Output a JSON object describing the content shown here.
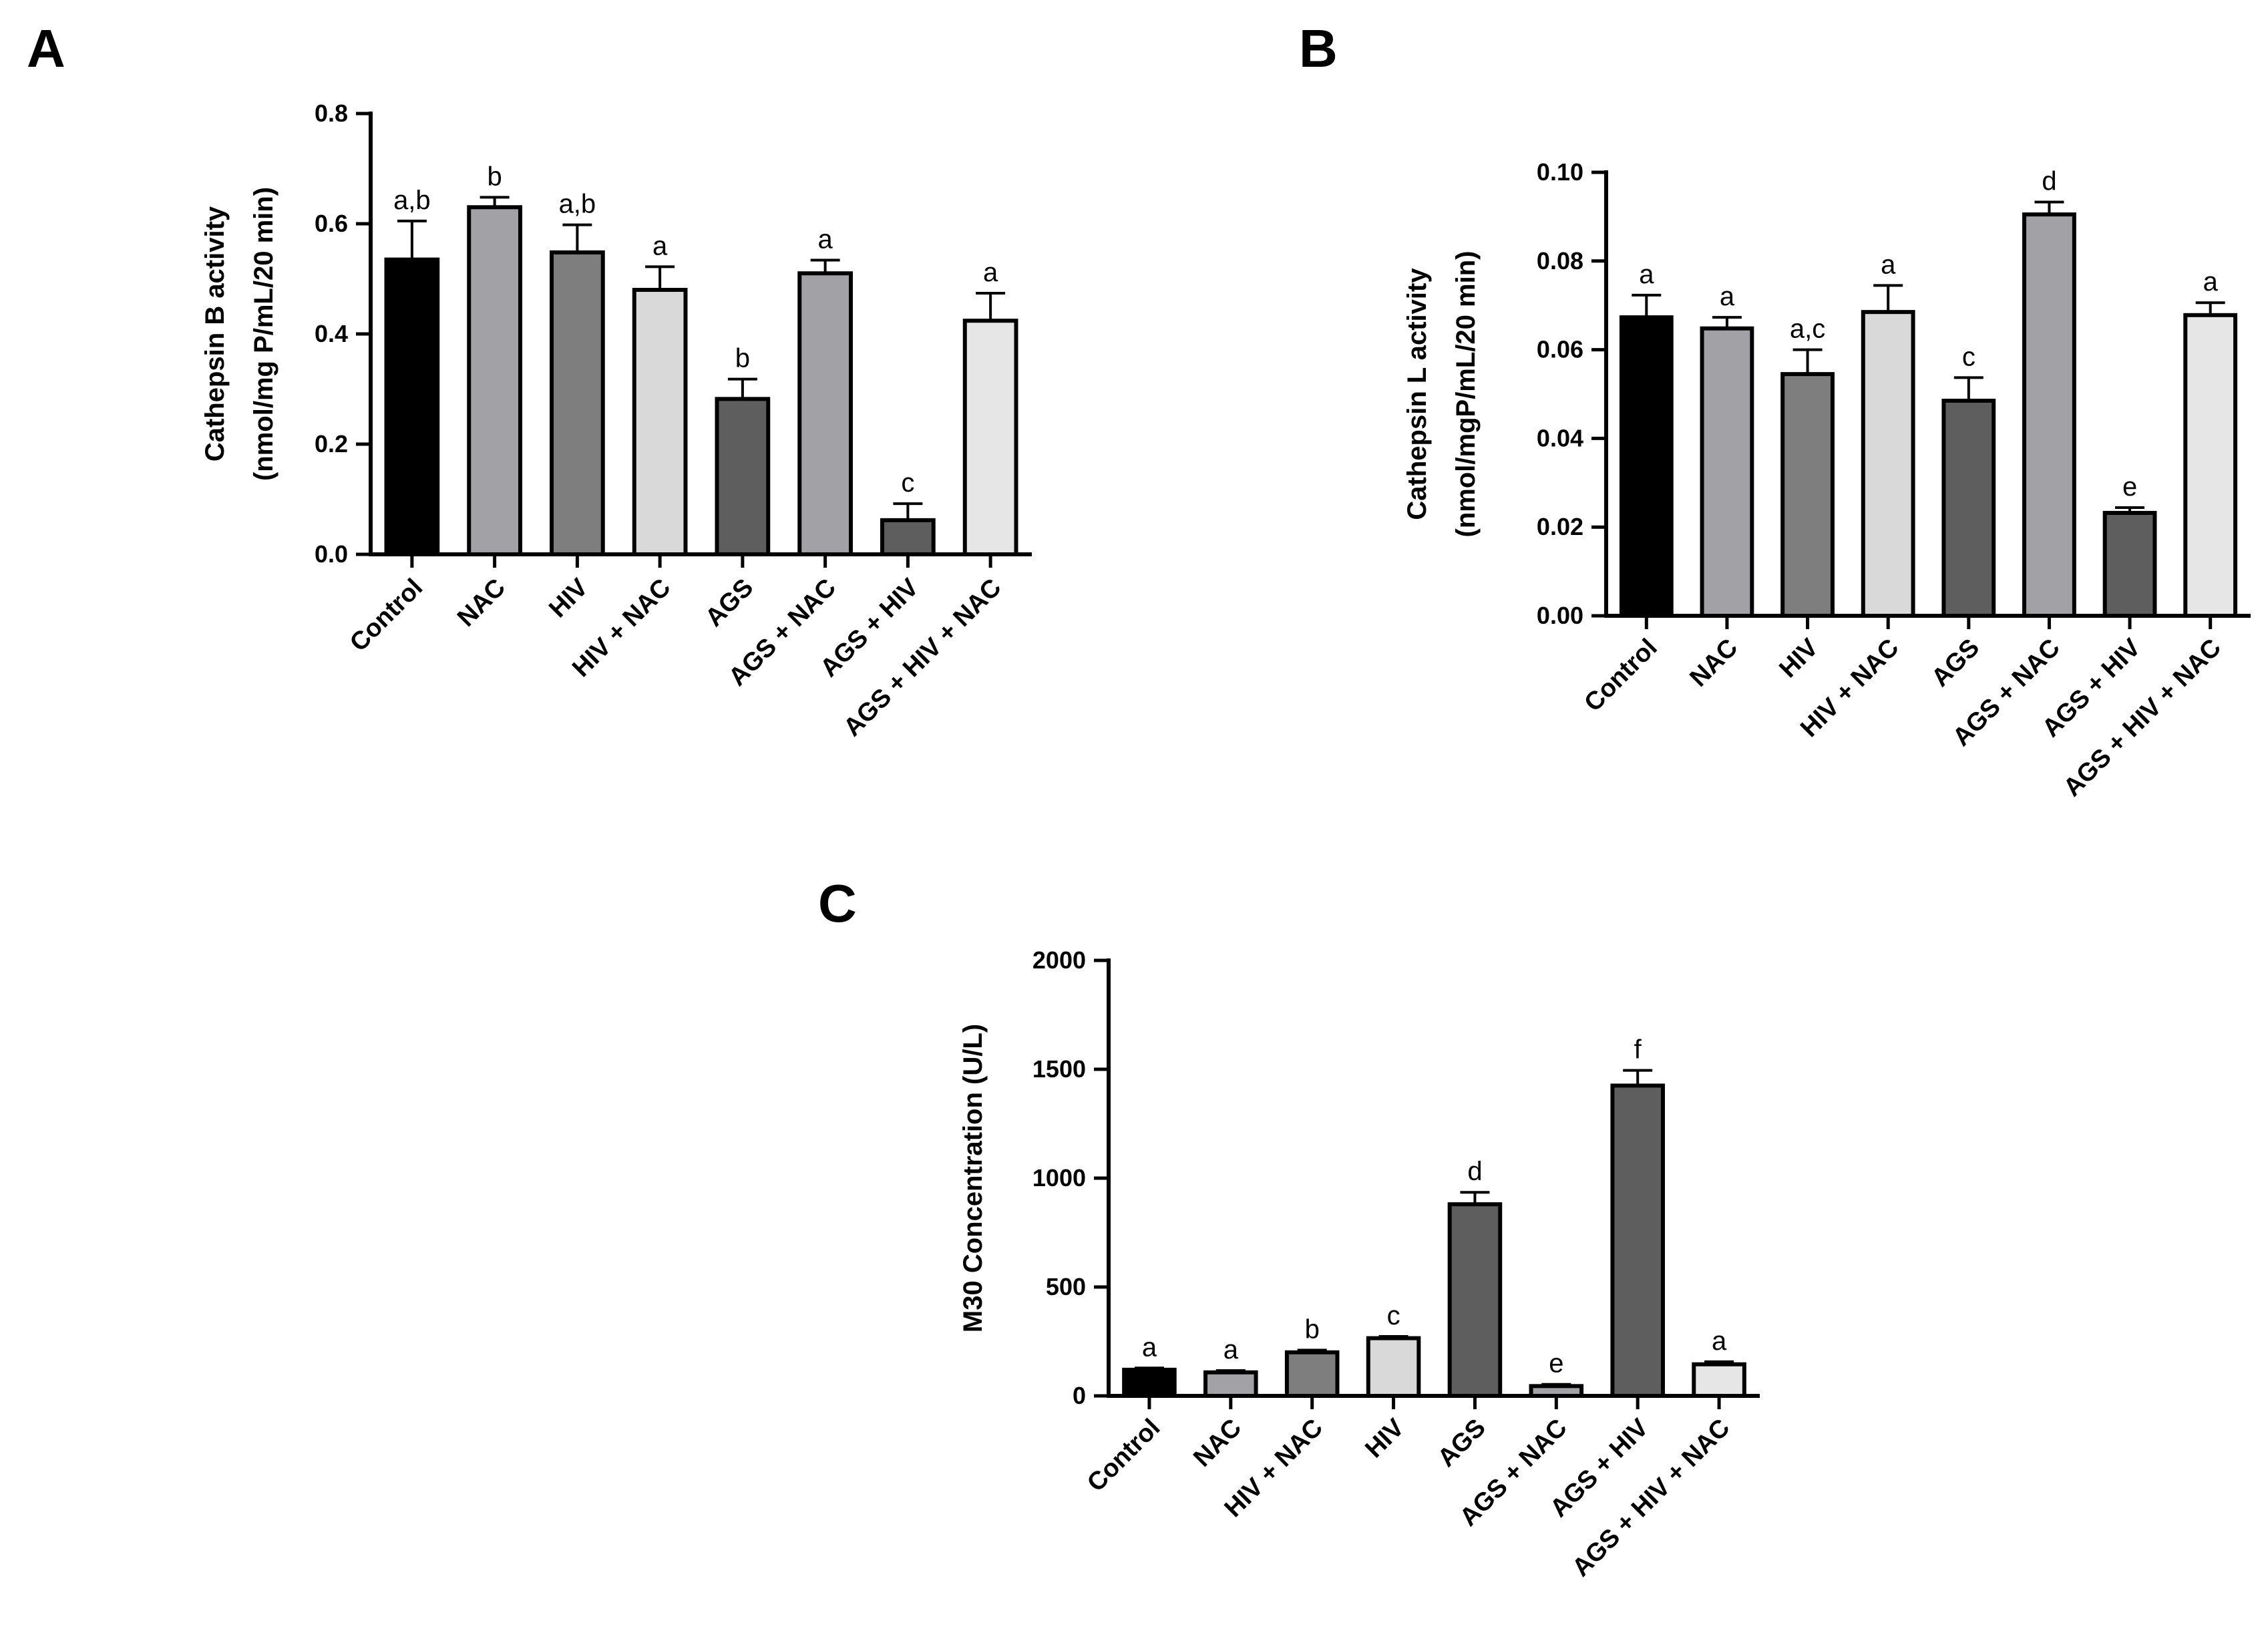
{
  "chart_data": [
    {
      "panel": "A",
      "type": "bar",
      "categories": [
        "Control",
        "NAC",
        "HIV",
        "HIV + NAC",
        "AGS",
        "AGS + NAC",
        "AGS + HIV",
        "AGS + HIV + NAC"
      ],
      "values": [
        0.535,
        0.63,
        0.548,
        0.48,
        0.282,
        0.51,
        0.062,
        0.424
      ],
      "errors": [
        0.07,
        0.018,
        0.05,
        0.042,
        0.036,
        0.024,
        0.03,
        0.05
      ],
      "significance": [
        "a,b",
        "b",
        "a,b",
        "a",
        "b",
        "a",
        "c",
        "a"
      ],
      "bar_colors": [
        "#000000",
        "#a2a2a6",
        "#7e7e7e",
        "#d9d9d9",
        "#5e5e5e",
        "#a2a2a6",
        "#5e5e5e",
        "#e6e6e6"
      ],
      "ylabel_line1": "Cathepsin B activity",
      "ylabel_line2": "(nmol/mg P/mL/20 min)",
      "ylim": [
        0,
        0.8
      ],
      "yticks": [
        "0.0",
        "0.2",
        "0.4",
        "0.6",
        "0.8"
      ]
    },
    {
      "panel": "B",
      "type": "bar",
      "categories": [
        "Control",
        "NAC",
        "HIV",
        "HIV + NAC",
        "AGS",
        "AGS + NAC",
        "AGS + HIV",
        "AGS + HIV + NAC"
      ],
      "values": [
        0.0673,
        0.0648,
        0.0545,
        0.0685,
        0.0485,
        0.0905,
        0.0232,
        0.0678
      ],
      "errors": [
        0.005,
        0.0025,
        0.0055,
        0.006,
        0.0052,
        0.0028,
        0.0012,
        0.0028
      ],
      "significance": [
        "a",
        "a",
        "a,c",
        "a",
        "c",
        "d",
        "e",
        "a"
      ],
      "bar_colors": [
        "#000000",
        "#a2a2a6",
        "#7e7e7e",
        "#d9d9d9",
        "#5e5e5e",
        "#a2a2a6",
        "#5e5e5e",
        "#e6e6e6"
      ],
      "ylabel_line1": "Cathepsin L activity",
      "ylabel_line2": "(nmol/mgP/mL/20 min)",
      "ylim": [
        0,
        0.1
      ],
      "yticks": [
        "0.00",
        "0.02",
        "0.04",
        "0.06",
        "0.08",
        "0.10"
      ]
    },
    {
      "panel": "C",
      "type": "bar",
      "categories": [
        "Control",
        "NAC",
        "HIV + NAC",
        "HIV",
        "AGS",
        "AGS + NAC",
        "AGS + HIV",
        "AGS + HIV + NAC"
      ],
      "values": [
        120,
        108,
        200,
        265,
        880,
        45,
        1425,
        145
      ],
      "errors": [
        8,
        8,
        10,
        8,
        55,
        8,
        70,
        12
      ],
      "significance": [
        "a",
        "a",
        "b",
        "c",
        "d",
        "e",
        "f",
        "a"
      ],
      "bar_colors": [
        "#000000",
        "#a2a2a6",
        "#7e7e7e",
        "#d9d9d9",
        "#5e5e5e",
        "#a2a2a6",
        "#5e5e5e",
        "#e6e6e6"
      ],
      "ylabel_line1": "M30 Concentration (U/L)",
      "ylabel_line2": "",
      "ylim": [
        0,
        2000
      ],
      "yticks": [
        "0",
        "500",
        "1000",
        "1500",
        "2000"
      ]
    }
  ]
}
